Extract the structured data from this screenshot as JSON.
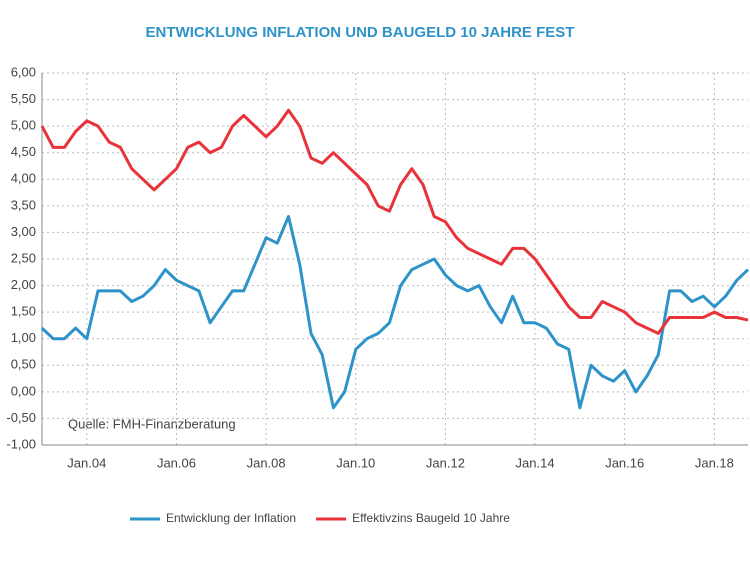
{
  "chart_data": {
    "type": "line",
    "title": "ENTWICKLUNG INFLATION UND BAUGELD 10 JAHRE FEST",
    "annotation": "Quelle: FMH-Finanzberatung",
    "x": [
      2003,
      2003.25,
      2003.5,
      2003.75,
      2004,
      2004.25,
      2004.5,
      2004.75,
      2005,
      2005.25,
      2005.5,
      2005.75,
      2006,
      2006.25,
      2006.5,
      2006.75,
      2007,
      2007.25,
      2007.5,
      2007.75,
      2008,
      2008.25,
      2008.5,
      2008.75,
      2009,
      2009.25,
      2009.5,
      2009.75,
      2010,
      2010.25,
      2010.5,
      2010.75,
      2011,
      2011.25,
      2011.5,
      2011.75,
      2012,
      2012.25,
      2012.5,
      2012.75,
      2013,
      2013.25,
      2013.5,
      2013.75,
      2014,
      2014.25,
      2014.5,
      2014.75,
      2015,
      2015.25,
      2015.5,
      2015.75,
      2016,
      2016.25,
      2016.5,
      2016.75,
      2017,
      2017.25,
      2017.5,
      2017.75,
      2018,
      2018.25,
      2018.5,
      2018.75
    ],
    "series": [
      {
        "name": "Entwicklung der Inflation",
        "color": "#2e93c8",
        "values": [
          1.2,
          1.0,
          1.0,
          1.2,
          1.0,
          1.9,
          1.9,
          1.9,
          1.7,
          1.8,
          2.0,
          2.3,
          2.1,
          2.0,
          1.9,
          1.3,
          1.6,
          1.9,
          1.9,
          2.4,
          2.9,
          2.8,
          3.3,
          2.4,
          1.1,
          0.7,
          -0.3,
          0.0,
          0.8,
          1.0,
          1.1,
          1.3,
          2.0,
          2.3,
          2.4,
          2.5,
          2.2,
          2.0,
          1.9,
          2.0,
          1.6,
          1.3,
          1.8,
          1.3,
          1.3,
          1.2,
          0.9,
          0.8,
          -0.3,
          0.5,
          0.3,
          0.2,
          0.4,
          0.0,
          0.3,
          0.7,
          1.9,
          1.9,
          1.7,
          1.8,
          1.6,
          1.8,
          2.1,
          2.3
        ]
      },
      {
        "name": "Effektivzins Baugeld 10 Jahre",
        "color": "#e8333a",
        "values": [
          5.0,
          4.6,
          4.6,
          4.9,
          5.1,
          5.0,
          4.7,
          4.6,
          4.2,
          4.0,
          3.8,
          4.0,
          4.2,
          4.6,
          4.7,
          4.5,
          4.6,
          5.0,
          5.2,
          5.0,
          4.8,
          5.0,
          5.3,
          5.0,
          4.4,
          4.3,
          4.5,
          4.3,
          4.1,
          3.9,
          3.5,
          3.4,
          3.9,
          4.2,
          3.9,
          3.3,
          3.2,
          2.9,
          2.7,
          2.6,
          2.5,
          2.4,
          2.7,
          2.7,
          2.5,
          2.2,
          1.9,
          1.6,
          1.4,
          1.4,
          1.7,
          1.6,
          1.5,
          1.3,
          1.2,
          1.1,
          1.4,
          1.4,
          1.4,
          1.4,
          1.5,
          1.4,
          1.4,
          1.35
        ]
      }
    ],
    "xlim": [
      2003,
      2018.75
    ],
    "xticks": [
      {
        "value": 2004,
        "label": "Jan.04"
      },
      {
        "value": 2006,
        "label": "Jan.06"
      },
      {
        "value": 2008,
        "label": "Jan.08"
      },
      {
        "value": 2010,
        "label": "Jan.10"
      },
      {
        "value": 2012,
        "label": "Jan.12"
      },
      {
        "value": 2014,
        "label": "Jan.14"
      },
      {
        "value": 2016,
        "label": "Jan.16"
      },
      {
        "value": 2018,
        "label": "Jan.18"
      }
    ],
    "ylim": [
      -1,
      6
    ],
    "yticks": [
      {
        "value": -1,
        "label": "-1,00"
      },
      {
        "value": -0.5,
        "label": "-0,50"
      },
      {
        "value": 0,
        "label": "0,00"
      },
      {
        "value": 0.5,
        "label": "0,50"
      },
      {
        "value": 1,
        "label": "1,00"
      },
      {
        "value": 1.5,
        "label": "1,50"
      },
      {
        "value": 2,
        "label": "2,00"
      },
      {
        "value": 2.5,
        "label": "2,50"
      },
      {
        "value": 3,
        "label": "3,00"
      },
      {
        "value": 3.5,
        "label": "3,50"
      },
      {
        "value": 4,
        "label": "4,00"
      },
      {
        "value": 4.5,
        "label": "4,50"
      },
      {
        "value": 5,
        "label": "5,00"
      },
      {
        "value": 5.5,
        "label": "5,50"
      },
      {
        "value": 6,
        "label": "6,00"
      }
    ],
    "grid": true
  }
}
